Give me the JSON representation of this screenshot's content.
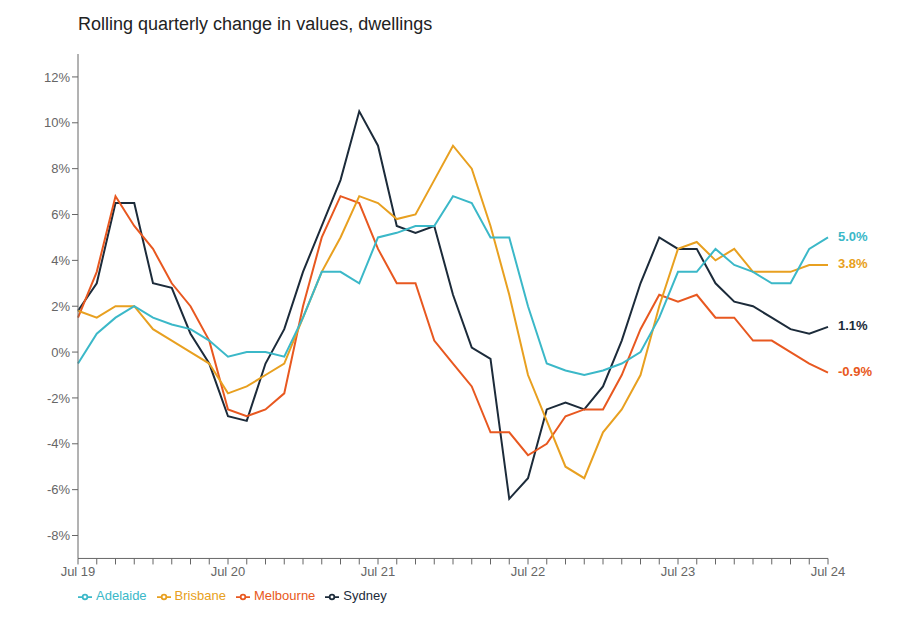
{
  "chart_data": {
    "type": "line",
    "title": "Rolling quarterly change in values, dwellings",
    "categories": [
      "Jul 19",
      null,
      null,
      null,
      null,
      null,
      null,
      null,
      "Jul 20",
      null,
      null,
      null,
      null,
      null,
      null,
      null,
      "Jul 21",
      null,
      null,
      null,
      null,
      null,
      null,
      null,
      "Jul 22",
      null,
      null,
      null,
      null,
      null,
      null,
      null,
      "Jul 23",
      null,
      null,
      null,
      null,
      null,
      null,
      null,
      "Jul 24"
    ],
    "series": [
      {
        "name": "Sydney",
        "color": "#1c2b3a",
        "values": [
          1.8,
          3.0,
          6.5,
          6.5,
          3.0,
          2.8,
          0.8,
          -0.5,
          -2.8,
          -3.0,
          -0.5,
          1.0,
          3.5,
          5.5,
          7.5,
          10.5,
          9.0,
          5.5,
          5.2,
          5.5,
          2.5,
          0.2,
          -0.3,
          -6.4,
          -5.5,
          -2.5,
          -2.2,
          -2.5,
          -1.5,
          0.5,
          3.0,
          5.0,
          4.5,
          4.5,
          3.0,
          2.2,
          2.0,
          1.5,
          1.0,
          0.8,
          1.1
        ]
      },
      {
        "name": "Melbourne",
        "color": "#e85820",
        "values": [
          1.5,
          3.5,
          6.8,
          5.5,
          4.5,
          3.0,
          2.0,
          0.5,
          -2.5,
          -2.8,
          -2.5,
          -1.8,
          2.0,
          5.0,
          6.8,
          6.5,
          4.5,
          3.0,
          3.0,
          0.5,
          -0.5,
          -1.5,
          -3.5,
          -3.5,
          -4.5,
          -4.0,
          -2.8,
          -2.5,
          -2.5,
          -1.0,
          1.0,
          2.5,
          2.2,
          2.5,
          1.5,
          1.5,
          0.5,
          0.5,
          0.0,
          -0.5,
          -0.9
        ]
      },
      {
        "name": "Brisbane",
        "color": "#e8a020",
        "values": [
          1.8,
          1.5,
          2.0,
          2.0,
          1.0,
          0.5,
          0.0,
          -0.5,
          -1.8,
          -1.5,
          -1.0,
          -0.5,
          1.5,
          3.5,
          5.0,
          6.8,
          6.5,
          5.8,
          6.0,
          7.5,
          9.0,
          8.0,
          5.5,
          2.5,
          -1.0,
          -3.0,
          -5.0,
          -5.5,
          -3.5,
          -2.5,
          -1.0,
          2.0,
          4.5,
          4.8,
          4.0,
          4.5,
          3.5,
          3.5,
          3.5,
          3.8,
          3.8
        ]
      },
      {
        "name": "Adelaide",
        "color": "#3bb8c8",
        "values": [
          -0.5,
          0.8,
          1.5,
          2.0,
          1.5,
          1.2,
          1.0,
          0.5,
          -0.2,
          0.0,
          0.0,
          -0.2,
          1.5,
          3.5,
          3.5,
          3.0,
          5.0,
          5.2,
          5.5,
          5.5,
          6.8,
          6.5,
          5.0,
          5.0,
          2.0,
          -0.5,
          -0.8,
          -1.0,
          -0.8,
          -0.5,
          0.0,
          1.5,
          3.5,
          3.5,
          4.5,
          3.8,
          3.5,
          3.0,
          3.0,
          4.5,
          5.0
        ]
      }
    ],
    "ylim": [
      -9,
      13
    ],
    "yticks": [
      {
        "value": -8,
        "label": "-8%"
      },
      {
        "value": -6,
        "label": "-6%"
      },
      {
        "value": -4,
        "label": "-4%"
      },
      {
        "value": -2,
        "label": "-2%"
      },
      {
        "value": 0,
        "label": "0%"
      },
      {
        "value": 2,
        "label": "2%"
      },
      {
        "value": 4,
        "label": "4%"
      },
      {
        "value": 6,
        "label": "6%"
      },
      {
        "value": 8,
        "label": "8%"
      },
      {
        "value": 10,
        "label": "10%"
      },
      {
        "value": 12,
        "label": "12%"
      }
    ],
    "annotations": [
      {
        "text": "5.0%",
        "series": "Adelaide"
      },
      {
        "text": "3.8%",
        "series": "Brisbane"
      },
      {
        "text": "1.1%",
        "series": "Sydney"
      },
      {
        "text": "-0.9%",
        "series": "Melbourne"
      }
    ],
    "grid": false,
    "legend": "bottom"
  }
}
